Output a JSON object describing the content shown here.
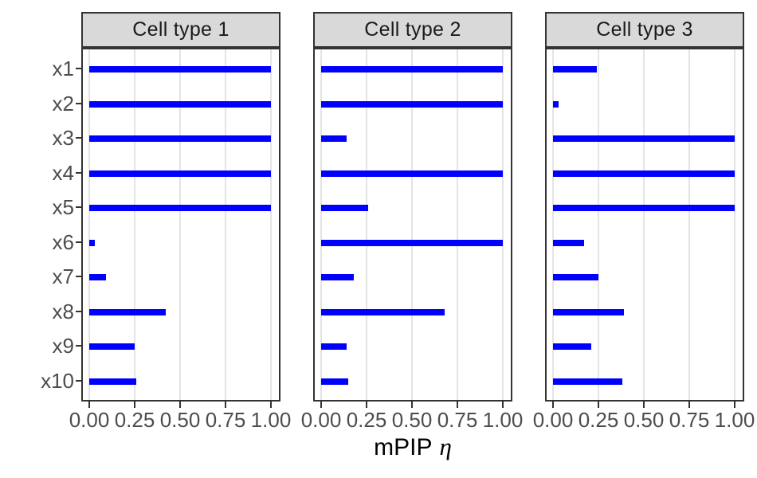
{
  "chart_data": {
    "type": "bar",
    "orientation": "horizontal",
    "facet_layout": "three-column",
    "categories": [
      "x1",
      "x2",
      "x3",
      "x4",
      "x5",
      "x6",
      "x7",
      "x8",
      "x9",
      "x10"
    ],
    "facets": [
      {
        "label": "Cell type 1",
        "values": [
          1.0,
          1.0,
          1.0,
          1.0,
          1.0,
          0.03,
          0.09,
          0.42,
          0.25,
          0.26
        ]
      },
      {
        "label": "Cell type 2",
        "values": [
          1.0,
          1.0,
          0.14,
          1.0,
          0.26,
          1.0,
          0.18,
          0.68,
          0.14,
          0.15
        ]
      },
      {
        "label": "Cell type 3",
        "values": [
          0.24,
          0.03,
          1.0,
          1.0,
          1.0,
          0.17,
          0.25,
          0.39,
          0.21,
          0.38
        ]
      }
    ],
    "x_tick_labels": [
      "0.00",
      "0.25",
      "0.50",
      "0.75",
      "1.00"
    ],
    "x_tick_values": [
      0,
      0.25,
      0.5,
      0.75,
      1
    ],
    "xlim": [
      0,
      1
    ],
    "xlabel_main": "mPIP",
    "xlabel_symbol": "η",
    "ylabel": "",
    "title": "",
    "legend": "none",
    "grid": "major-x-only",
    "colors": {
      "bar": "#0000FF",
      "strip_bg": "#D9D9D9",
      "panel_border": "#333333",
      "gridline": "#E4E4E4",
      "axis_text": "#4D4D4D",
      "strip_text": "#1A1A1A",
      "tick_mark": "#333333",
      "title_text": "#000000",
      "background": "#FFFFFF"
    }
  }
}
